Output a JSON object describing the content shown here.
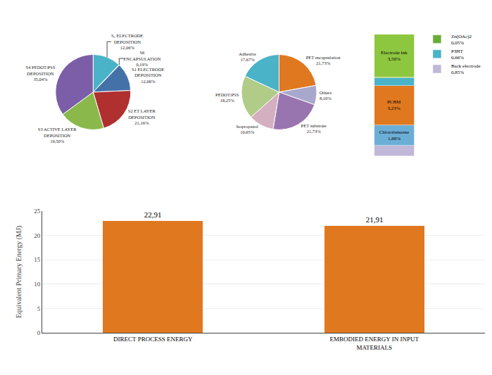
{
  "chart_data": [
    {
      "type": "pie",
      "categories": [
        "S₅ ELECTRODE\nDEPOSITION",
        "S6\nENCAPSULATION",
        "S1 ELECTRODE\nDEPOSITION",
        "S2 ET LAYER\nDEPOSITION",
        "S3 ACTIVE LAYER\nDEPOSITION",
        "S4 PEDOT:PSS\nDEPOSITION"
      ],
      "values": [
        12.06,
        0.19,
        12.06,
        21.16,
        19.5,
        35.04
      ],
      "value_labels": [
        "12,06%",
        "0,19%",
        "12,06%",
        "21,16%",
        "19,50%",
        "35,04%"
      ],
      "colors": [
        "#4ab3c8",
        "#e0e0e0",
        "#4472a8",
        "#b03030",
        "#8ab84a",
        "#7b5ea7"
      ]
    },
    {
      "type": "pie",
      "categories": [
        "PET encapsulation",
        "Others",
        "PET substrate",
        "Isopropanol",
        "PEDOT:PSS",
        "Adhesive"
      ],
      "values": [
        21.73,
        8.16,
        21.73,
        10.65,
        18.25,
        17.67
      ],
      "value_labels": [
        "21,73%",
        "8,16%",
        "21,73%",
        "10,65%",
        "18,25%",
        "17,67%"
      ],
      "colors": [
        "#e07820",
        "#a8a8cc",
        "#9975b0",
        "#d4afc0",
        "#b0cc88",
        "#4ab3c8"
      ]
    },
    {
      "type": "bar",
      "stacked": true,
      "categories": [
        null
      ],
      "series": [
        {
          "name": "Back electrode",
          "color": "#c0b8d8",
          "values": [
            0.85
          ],
          "value_labels": [
            "0,85%"
          ]
        },
        {
          "name": "Chlorobenzene",
          "color": "#6baed6",
          "values": [
            1.66
          ],
          "value_labels": [
            "1,66%"
          ]
        },
        {
          "name": "PCBM",
          "color": "#e07820",
          "values": [
            3.23
          ],
          "value_labels": [
            "3,23%"
          ]
        },
        {
          "name": "P3HT",
          "color": "#4ab3c8",
          "values": [
            0.66
          ],
          "value_labels": [
            "0,66%"
          ]
        },
        {
          "name": "Zn(OAc)2",
          "color": "#6aab3a",
          "values": [
            0.05
          ],
          "value_labels": [
            "0,05%"
          ]
        },
        {
          "name": "Electrode ink",
          "color": "#8dc63f",
          "values": [
            3.5
          ],
          "value_labels": [
            "3,50%"
          ]
        }
      ],
      "tick_labels": false,
      "data_labels": true,
      "legend": "right"
    },
    {
      "type": "bar",
      "categories": [
        "DIRECT PROCESS ENERGY",
        "EMBODIED ENERGY IN INPUT\nMATERIALS"
      ],
      "values": [
        22.91,
        21.91
      ],
      "value_labels": [
        "22,91",
        "21,91"
      ],
      "color": "#e07820",
      "ylabel": "Equivalent Primary Energy (MJ)",
      "ylim": [
        0,
        25
      ],
      "yticks": [
        0,
        5,
        10,
        15,
        20,
        25
      ],
      "grid": true,
      "data_labels": true
    }
  ]
}
